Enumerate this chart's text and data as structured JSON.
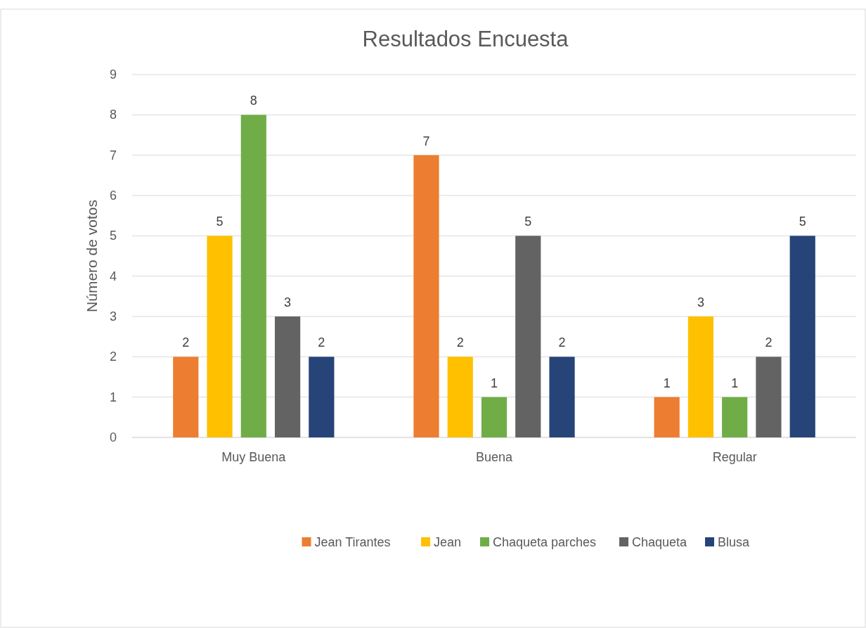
{
  "chart_data": {
    "type": "bar",
    "title": "Resultados Encuesta",
    "ylabel": "Número de votos",
    "categories": [
      "Muy Buena",
      "Buena",
      "Regular"
    ],
    "series": [
      {
        "name": "Jean Tirantes",
        "color": "#ed7d31",
        "values": [
          2,
          7,
          1
        ]
      },
      {
        "name": "Jean",
        "color": "#ffc000",
        "values": [
          5,
          2,
          3
        ]
      },
      {
        "name": "Chaqueta parches",
        "color": "#70ad47",
        "values": [
          8,
          1,
          1
        ]
      },
      {
        "name": "Chaqueta",
        "color": "#636363",
        "values": [
          3,
          5,
          2
        ]
      },
      {
        "name": "Blusa",
        "color": "#264478",
        "values": [
          2,
          2,
          5
        ]
      }
    ],
    "ylim": [
      0,
      9
    ],
    "yticks": [
      0,
      1,
      2,
      3,
      4,
      5,
      6,
      7,
      8,
      9
    ],
    "grid": "y",
    "legend": "bottom",
    "data_labels": true
  }
}
